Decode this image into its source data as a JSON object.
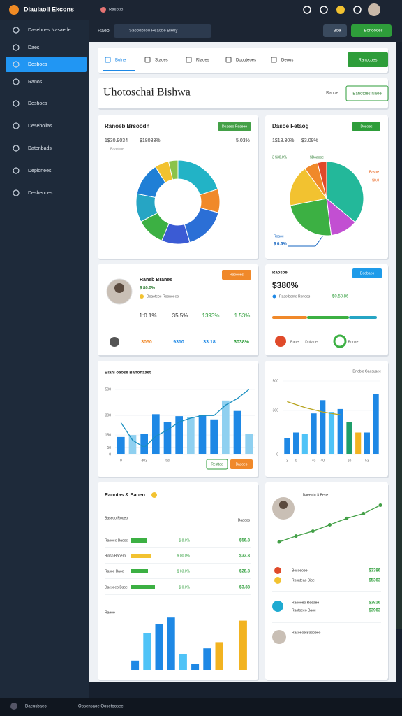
{
  "app": {
    "title": "Dlaulaoli Ekcons",
    "tag": "Rasotlo"
  },
  "sidebar": [
    "Daseboes Nasaede",
    "Daes",
    "Desboes",
    "Ranos",
    "Deshoes",
    "Deseboilas",
    "Datenbads",
    "Deplonees",
    "Desbeooes"
  ],
  "toolbar": {
    "label": "Raeo",
    "search": "Saobobiioo Reaobe Bieuy",
    "button1": "Boe",
    "button2": "Bonoooes"
  },
  "tabs": [
    "Bolne",
    "Staoes",
    "Rlaoes",
    "Doooteoes",
    "Deoos"
  ],
  "tab_button": "Ranocoes",
  "header": {
    "title": "Uhotoschai Bishwa",
    "link": "Ranoe",
    "button": "Banotoes Naoe"
  },
  "donut_card": {
    "badge": "Doaeeo Reseee",
    "stats": [
      "1$30.9034",
      "$18033%",
      "5.03%"
    ],
    "note": "Baaaboe"
  },
  "pie_card": {
    "badge": "Dosoes",
    "stats": [
      "1$18.30%",
      "$3.09%"
    ],
    "legend": [
      "3 $30.0%",
      "$Boaooe"
    ],
    "callouts": [
      "Basoe",
      "$0.0"
    ],
    "foot": [
      "Roaoe",
      "$ 0.6%"
    ]
  },
  "profile_card": {
    "name": "Raneb Branes",
    "sub": "$ 80.0%",
    "desc": "Doaoteoe Roonoeeo",
    "badge": "Raoeoes",
    "stats": [
      "1:0.1%",
      "35.5%",
      "1393%",
      "1.53%"
    ],
    "footer": [
      "3050",
      "9310",
      "33.18",
      "3038%"
    ]
  },
  "kpi_card": {
    "title": "Raosoe",
    "badge": "Doobaeo",
    "value": "$380%",
    "desc": "Rasotbonte Roneos",
    "change": "$0.58.86",
    "icons": [
      "Raoe",
      "Dobaoe",
      "Ronae"
    ]
  },
  "bar_card": {
    "buttons": [
      "Resttoe",
      "Basoes"
    ]
  },
  "table_card": {
    "title": "Ranotas & Baoeo",
    "head": [
      "Baseoo Rooeb",
      "Dagoos"
    ],
    "rows": [
      [
        "Raooee Baooe",
        "$ 8.0%",
        "$56.8"
      ],
      [
        "Bloso Baoerb",
        "$ 00.0%",
        "$33.8"
      ],
      [
        "Rasoe Baoe",
        "$ 03.0%",
        "$28.8"
      ],
      [
        "Daesoeo Bsoe",
        "$ 0.0%",
        "$3.88"
      ]
    ],
    "progress": [
      55,
      70,
      60,
      85
    ],
    "foot": "Raeoe"
  },
  "list_card": {
    "items": [
      [
        "Bosoeoee",
        "$3386"
      ],
      [
        "Rosateao Bioe",
        "$5363"
      ],
      [
        "Raooeeo Reeaee",
        "$3916"
      ],
      [
        "Raotoeeo Baoe",
        "$3963"
      ]
    ],
    "last": "Rasoeoe Baooeeo"
  },
  "taskbar": [
    "Daeusbaeo",
    "Oosensaoe Oosetoosee"
  ],
  "chart_data": [
    {
      "type": "donut",
      "title": "Ranoeb Brsoodn",
      "values": [
        22,
        10,
        18,
        12,
        12,
        12,
        14,
        6,
        4
      ],
      "colors": [
        "#22b3c6",
        "#f0892a",
        "#2b6fd6",
        "#3b5bd4",
        "#3cb043",
        "#26a5c4",
        "#1f7fd6",
        "#f2c230",
        "#8bc34a"
      ]
    },
    {
      "type": "pie",
      "title": "Dasoe Fetaog",
      "values": [
        36,
        12,
        24,
        18,
        6,
        4
      ],
      "colors": [
        "#23b89a",
        "#c24fd2",
        "#3cb043",
        "#f2c230",
        "#f0892a",
        "#e04a2a"
      ]
    },
    {
      "type": "bar",
      "title": "Bianl oaose Banohaaet",
      "categories": [
        "0",
        null,
        "d03",
        null,
        "tid",
        null,
        null,
        null,
        null,
        null,
        null,
        null
      ],
      "values": [
        135,
        150,
        160,
        310,
        250,
        295,
        290,
        305,
        270,
        415,
        335,
        160
      ],
      "colors": [
        "#1e88e5",
        "#8fd0f0",
        "#1e88e5",
        "#1e88e5",
        "#1e88e5",
        "#1e88e5",
        "#8fd0f0",
        "#1e88e5",
        "#1e88e5",
        "#8fd0f0",
        "#1e88e5",
        "#8fd0f0"
      ],
      "ylim": [
        0,
        500
      ],
      "yticks": [
        0,
        50,
        150,
        300,
        500
      ],
      "line_values": [
        245,
        110,
        55,
        140,
        190,
        250,
        280,
        300,
        300,
        380,
        430,
        500
      ],
      "line_color": "#1a8fc0"
    },
    {
      "type": "bar",
      "title": "Drtobio Gaesuaee",
      "categories": [
        "3",
        "0",
        null,
        "40",
        "40",
        null,
        null,
        "10",
        null,
        "53",
        null
      ],
      "values": [
        110,
        150,
        140,
        280,
        370,
        290,
        310,
        220,
        150,
        150,
        410
      ],
      "colors": [
        "#1e88e5",
        "#1e88e5",
        "#4fc3f7",
        "#1e88e5",
        "#1e88e5",
        "#4fc3f7",
        "#1e88e5",
        "#1e9e6a",
        "#f2b320",
        "#1e88e5",
        "#1e88e5"
      ],
      "ylim": [
        0,
        500
      ],
      "yticks": [
        0,
        300,
        500
      ],
      "line_values": [
        360,
        340,
        320,
        305,
        290,
        280,
        270
      ],
      "line_color": "#b8a520"
    },
    {
      "type": "line",
      "title": "Daeeoto S Beoe",
      "values": [
        10,
        22,
        32,
        45,
        58,
        68,
        85
      ],
      "color": "#43a047",
      "ylim": [
        0,
        100
      ]
    },
    {
      "type": "bar",
      "values": [
        15,
        60,
        75,
        85,
        25,
        10,
        35,
        45,
        20,
        80
      ],
      "colors": [
        "#1e88e5",
        "#4fc3f7",
        "#1e88e5",
        "#1e88e5",
        "#4fc3f7",
        "#1e88e5",
        "#1e88e5",
        "#f2b320",
        "#ffffff",
        "#f2b320"
      ],
      "ylim": [
        0,
        100
      ]
    }
  ]
}
